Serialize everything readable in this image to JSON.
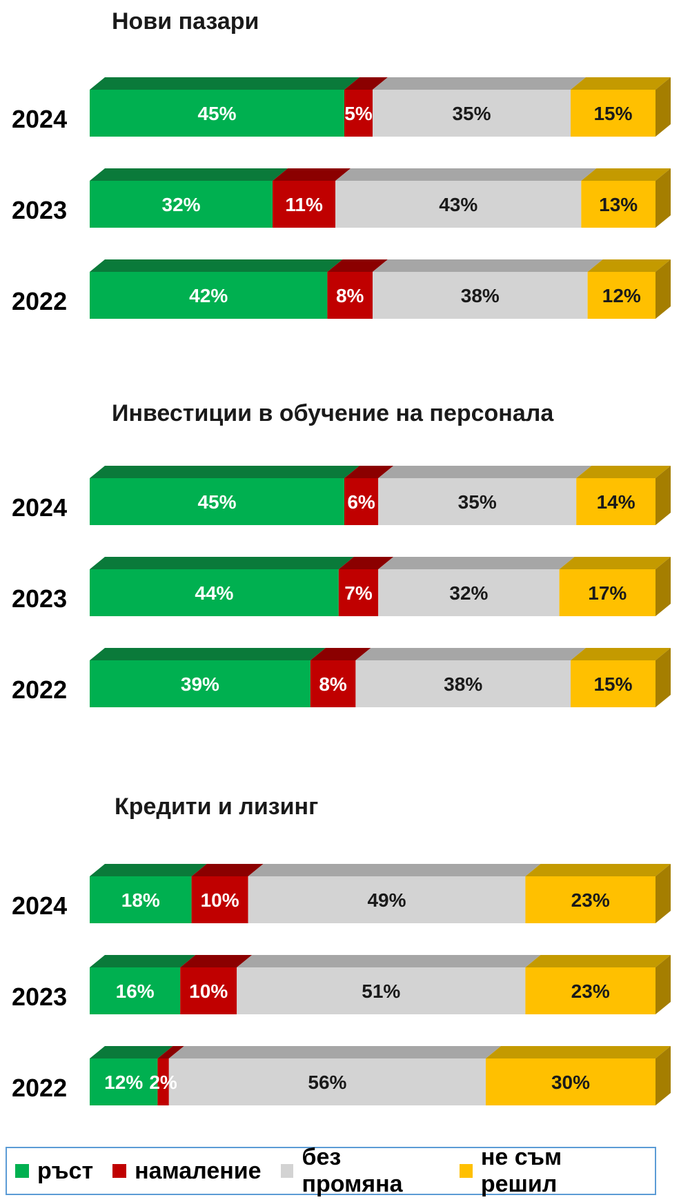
{
  "chart_data": [
    {
      "type": "bar",
      "title": "Нови пазари",
      "categories": [
        "2024",
        "2023",
        "2022"
      ],
      "series": [
        {
          "name": "ръст",
          "values": [
            45,
            32,
            42
          ]
        },
        {
          "name": "намаление",
          "values": [
            5,
            11,
            8
          ]
        },
        {
          "name": "без промяна",
          "values": [
            35,
            43,
            38
          ]
        },
        {
          "name": "не съм решил",
          "values": [
            15,
            13,
            12
          ]
        }
      ],
      "stacked": "percent",
      "orientation": "horizontal"
    },
    {
      "type": "bar",
      "title": "Инвестиции в обучение на персонала",
      "categories": [
        "2024",
        "2023",
        "2022"
      ],
      "series": [
        {
          "name": "ръст",
          "values": [
            45,
            44,
            39
          ]
        },
        {
          "name": "намаление",
          "values": [
            6,
            7,
            8
          ]
        },
        {
          "name": "без промяна",
          "values": [
            35,
            32,
            38
          ]
        },
        {
          "name": "не съм решил",
          "values": [
            14,
            17,
            15
          ]
        }
      ],
      "stacked": "percent",
      "orientation": "horizontal"
    },
    {
      "type": "bar",
      "title": "Кредити и лизинг",
      "categories": [
        "2024",
        "2023",
        "2022"
      ],
      "series": [
        {
          "name": "ръст",
          "values": [
            18,
            16,
            12
          ]
        },
        {
          "name": "намаление",
          "values": [
            10,
            10,
            2
          ]
        },
        {
          "name": "без промяна",
          "values": [
            49,
            51,
            56
          ]
        },
        {
          "name": "не съм решил",
          "values": [
            23,
            23,
            30
          ]
        }
      ],
      "stacked": "percent",
      "orientation": "horizontal"
    }
  ],
  "legend": {
    "placement": "bottom",
    "items": [
      {
        "label": "ръст",
        "color": "#00b050"
      },
      {
        "label": "намаление",
        "color": "#c00000"
      },
      {
        "label": "без промяна",
        "color": "#d3d3d3"
      },
      {
        "label": "не съм решил",
        "color": "#ffc000"
      }
    ]
  },
  "colors": {
    "growth": "#00b050",
    "decline": "#c00000",
    "nochange": "#d3d3d3",
    "undecided": "#ffc000",
    "label_light": "#ffffff",
    "label_dark": "#1a1a1a"
  }
}
